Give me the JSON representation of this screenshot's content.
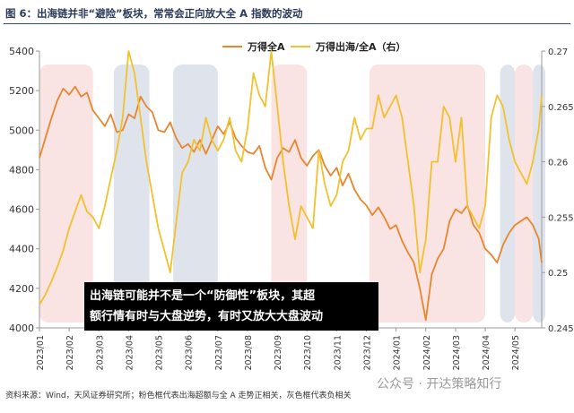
{
  "figure": {
    "title": "图 6：出海链并非“避险”板块，常常会正向放大全 A 指数的波动",
    "source": "资料来源：Wind，天风证券研究所；粉色框代表出海超额与全 A 走势正相关，灰色框代表负相关",
    "watermark": "公众号 · 开达策略知行",
    "annotation_line1": "出海链可能并不是一个“防御性”板块，其超",
    "annotation_line2": "额行情有时与大盘逆势，有时又放大大盘波动"
  },
  "colors": {
    "wande": "#E8862E",
    "ratio": "#F2C12E",
    "pink_box": "#F9DEDE",
    "gray_box": "#DCE1EA",
    "axis": "#9a9a9a",
    "title": "#2a3a5a"
  },
  "chart_data": {
    "type": "line",
    "legend_position": "top-center",
    "grid": false,
    "x_ticks": [
      "2023/01",
      "2023/02",
      "2023/03",
      "2023/04",
      "2023/05",
      "2023/06",
      "2023/07",
      "2023/08",
      "2023/09",
      "2023/10",
      "2023/11",
      "2023/12",
      "2024/01",
      "2024/02",
      "2024/03",
      "2024/04",
      "2024/05"
    ],
    "x_range": [
      0,
      16.9
    ],
    "y_left": {
      "ticks": [
        4000,
        4200,
        4400,
        4600,
        4800,
        5000,
        5200,
        5400
      ],
      "range": [
        4000,
        5400
      ]
    },
    "y_right": {
      "ticks": [
        "0.245",
        "0.25",
        "0.255",
        "0.26",
        "0.265",
        "0.27"
      ],
      "values": [
        0.245,
        0.25,
        0.255,
        0.26,
        0.265,
        0.27
      ],
      "range": [
        0.245,
        0.27
      ]
    },
    "pink_boxes": [
      [
        0,
        1.8
      ],
      [
        7.8,
        9.0
      ],
      [
        11.1,
        15.0
      ],
      [
        16.0,
        16.6
      ]
    ],
    "gray_boxes": [
      [
        2.5,
        3.7
      ],
      [
        4.5,
        6.0
      ],
      [
        15.5,
        16.0
      ],
      [
        16.6,
        17.3
      ]
    ],
    "series": [
      {
        "name": "万得全A",
        "axis": "left",
        "x": [
          0,
          0.2,
          0.4,
          0.6,
          0.8,
          1.0,
          1.2,
          1.4,
          1.6,
          1.8,
          2.0,
          2.2,
          2.4,
          2.6,
          2.8,
          3.0,
          3.2,
          3.4,
          3.6,
          3.8,
          4.0,
          4.2,
          4.4,
          4.6,
          4.8,
          5.0,
          5.2,
          5.4,
          5.6,
          5.8,
          6.0,
          6.2,
          6.4,
          6.6,
          6.8,
          7.0,
          7.2,
          7.4,
          7.6,
          7.8,
          8.0,
          8.2,
          8.4,
          8.6,
          8.8,
          9.0,
          9.2,
          9.4,
          9.6,
          9.8,
          10.0,
          10.2,
          10.4,
          10.6,
          10.8,
          11.0,
          11.2,
          11.4,
          11.6,
          11.8,
          12.0,
          12.2,
          12.4,
          12.6,
          12.8,
          13.0,
          13.2,
          13.4,
          13.6,
          13.8,
          14.0,
          14.2,
          14.4,
          14.6,
          14.8,
          15.0,
          15.2,
          15.4,
          15.6,
          15.8,
          16.0,
          16.2,
          16.4,
          16.6,
          16.8,
          16.9
        ],
        "values": [
          4860,
          4960,
          5060,
          5150,
          5210,
          5180,
          5220,
          5170,
          5190,
          5100,
          5060,
          5020,
          5080,
          4990,
          5000,
          5080,
          5060,
          5170,
          5120,
          5090,
          5000,
          4990,
          5040,
          4960,
          4910,
          4930,
          4890,
          4950,
          4880,
          4950,
          5020,
          4980,
          5040,
          4960,
          4920,
          4890,
          4880,
          4920,
          4810,
          4750,
          4860,
          4910,
          4890,
          4950,
          4860,
          4820,
          4870,
          4900,
          4820,
          4770,
          4810,
          4720,
          4780,
          4700,
          4650,
          4620,
          4570,
          4610,
          4560,
          4500,
          4520,
          4440,
          4380,
          4330,
          4200,
          4040,
          4270,
          4350,
          4400,
          4540,
          4600,
          4580,
          4620,
          4520,
          4480,
          4400,
          4370,
          4330,
          4420,
          4480,
          4520,
          4540,
          4560,
          4520,
          4450,
          4330
        ]
      },
      {
        "name": "万得出海/全A（右）",
        "axis": "right",
        "x": [
          0,
          0.2,
          0.4,
          0.6,
          0.8,
          1.0,
          1.2,
          1.4,
          1.6,
          1.8,
          2.0,
          2.2,
          2.4,
          2.6,
          2.8,
          3.0,
          3.2,
          3.4,
          3.6,
          3.8,
          4.0,
          4.2,
          4.4,
          4.6,
          4.8,
          5.0,
          5.2,
          5.4,
          5.6,
          5.8,
          6.0,
          6.2,
          6.4,
          6.6,
          6.8,
          7.0,
          7.2,
          7.4,
          7.6,
          7.8,
          8.0,
          8.2,
          8.4,
          8.6,
          8.8,
          9.0,
          9.2,
          9.4,
          9.6,
          9.8,
          10.0,
          10.2,
          10.4,
          10.6,
          10.8,
          11.0,
          11.2,
          11.4,
          11.6,
          11.8,
          12.0,
          12.2,
          12.4,
          12.6,
          12.8,
          13.0,
          13.2,
          13.4,
          13.6,
          13.8,
          14.0,
          14.2,
          14.4,
          14.6,
          14.8,
          15.0,
          15.2,
          15.4,
          15.6,
          15.8,
          16.0,
          16.2,
          16.4,
          16.6,
          16.8,
          16.9
        ],
        "values": [
          0.2471,
          0.248,
          0.2492,
          0.2505,
          0.252,
          0.254,
          0.2555,
          0.257,
          0.2555,
          0.255,
          0.254,
          0.256,
          0.2585,
          0.261,
          0.264,
          0.27,
          0.268,
          0.264,
          0.26,
          0.257,
          0.254,
          0.252,
          0.25,
          0.2545,
          0.259,
          0.26,
          0.262,
          0.261,
          0.264,
          0.262,
          0.261,
          0.262,
          0.264,
          0.261,
          0.26,
          0.263,
          0.268,
          0.266,
          0.265,
          0.27,
          0.265,
          0.26,
          0.256,
          0.253,
          0.256,
          0.255,
          0.254,
          0.261,
          0.258,
          0.256,
          0.257,
          0.26,
          0.261,
          0.264,
          0.262,
          0.263,
          0.263,
          0.266,
          0.264,
          0.265,
          0.266,
          0.264,
          0.26,
          0.256,
          0.25,
          0.253,
          0.26,
          0.26,
          0.265,
          0.264,
          0.26,
          0.264,
          0.256,
          0.255,
          0.254,
          0.256,
          0.264,
          0.266,
          0.265,
          0.262,
          0.26,
          0.259,
          0.258,
          0.26,
          0.263,
          0.266
        ]
      }
    ]
  }
}
